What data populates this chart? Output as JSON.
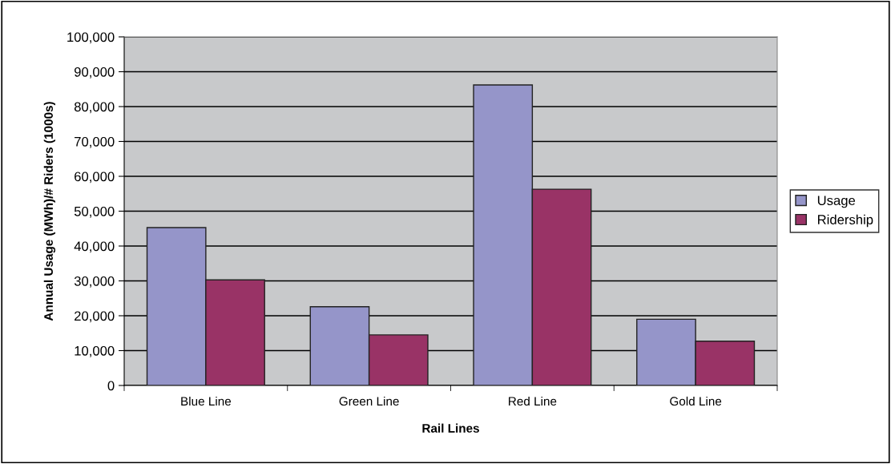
{
  "chart_data": {
    "type": "bar",
    "xlabel": "Rail Lines",
    "ylabel": "Annual Usage (MWh)/# Riders (1000s)",
    "categories": [
      "Blue Line",
      "Green Line",
      "Red Line",
      "Gold Line"
    ],
    "series": [
      {
        "name": "Usage",
        "color": "#9595c9",
        "values": [
          45300,
          22600,
          86200,
          19000
        ]
      },
      {
        "name": "Ridership",
        "color": "#993366",
        "values": [
          30300,
          14500,
          56300,
          12700
        ]
      }
    ],
    "ylim": [
      0,
      100000
    ],
    "yticks": [
      {
        "value": 0,
        "label": "0"
      },
      {
        "value": 10000,
        "label": "10,000"
      },
      {
        "value": 20000,
        "label": "20,000"
      },
      {
        "value": 30000,
        "label": "30,000"
      },
      {
        "value": 40000,
        "label": "40,000"
      },
      {
        "value": 50000,
        "label": "50,000"
      },
      {
        "value": 60000,
        "label": "60,000"
      },
      {
        "value": 70000,
        "label": "70,000"
      },
      {
        "value": 80000,
        "label": "80,000"
      },
      {
        "value": 90000,
        "label": "90,000"
      },
      {
        "value": 100000,
        "label": "100,000"
      }
    ],
    "grid": "y",
    "legend": "right"
  }
}
